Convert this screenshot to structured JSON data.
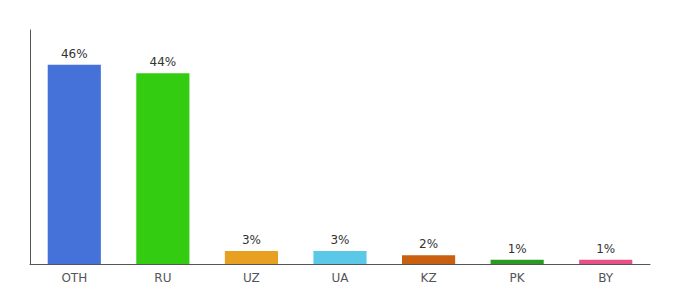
{
  "chart_data": {
    "type": "bar",
    "categories": [
      "OTH",
      "RU",
      "UZ",
      "UA",
      "KZ",
      "PK",
      "BY"
    ],
    "values": [
      46,
      44,
      3,
      3,
      2,
      1,
      1
    ],
    "value_labels": [
      "46%",
      "44%",
      "3%",
      "3%",
      "2%",
      "1%",
      "1%"
    ],
    "colors": [
      "#4472d9",
      "#33cc11",
      "#e8a020",
      "#5bc8e8",
      "#c86010",
      "#2a9a20",
      "#e8508a"
    ],
    "ylim": [
      0,
      54
    ],
    "grid": false,
    "data_labels": true,
    "tick_labels": "x"
  }
}
